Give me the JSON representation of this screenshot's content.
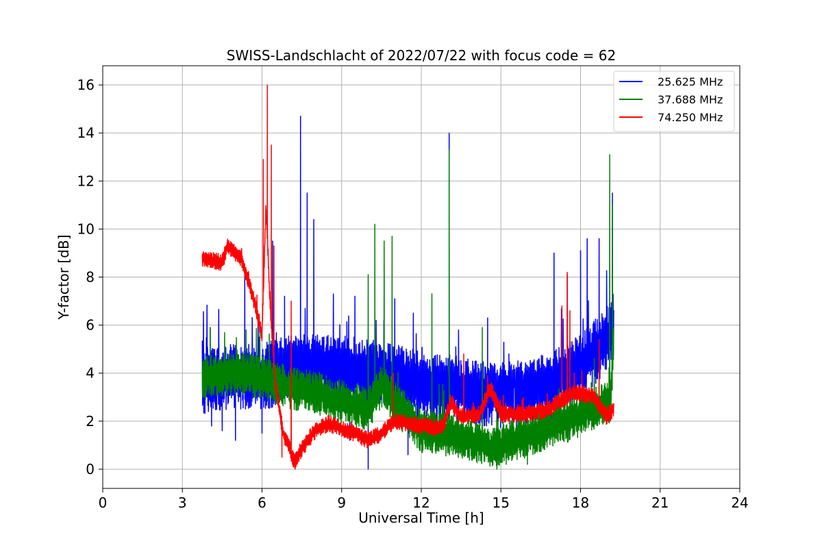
{
  "chart_data": {
    "type": "line",
    "title": "SWISS-Landschlacht of 2022/07/22 with focus code = 62",
    "xlabel": "Universal Time [h]",
    "ylabel": "Y-factor [dB]",
    "xlim": [
      0,
      24
    ],
    "ylim": [
      -0.8,
      16.8
    ],
    "xticks": [
      0,
      3,
      6,
      9,
      12,
      15,
      18,
      21,
      24
    ],
    "yticks": [
      0,
      2,
      4,
      6,
      8,
      10,
      12,
      14,
      16
    ],
    "grid": true,
    "legend_position": "top-right",
    "series": [
      {
        "name": "25.625 MHz",
        "color": "#0000ff",
        "base": [
          [
            3.75,
            3.7
          ],
          [
            4.5,
            3.8
          ],
          [
            5.5,
            3.8
          ],
          [
            6.2,
            3.9
          ],
          [
            7,
            4.2
          ],
          [
            8,
            4.2
          ],
          [
            9,
            4.2
          ],
          [
            10,
            4.0
          ],
          [
            11,
            3.8
          ],
          [
            12,
            3.5
          ],
          [
            13,
            3.4
          ],
          [
            14,
            3.2
          ],
          [
            15,
            3.1
          ],
          [
            16,
            3.2
          ],
          [
            17,
            3.6
          ],
          [
            18,
            4.2
          ],
          [
            19,
            5.5
          ],
          [
            19.25,
            6.0
          ]
        ],
        "noise": [
          1.4,
          1.4
        ],
        "spikes": [
          [
            4.05,
            5.9
          ],
          [
            5.35,
            8.2
          ],
          [
            5.9,
            5.5
          ],
          [
            6.4,
            9.5
          ],
          [
            6.85,
            7.2
          ],
          [
            7.45,
            14.7
          ],
          [
            7.7,
            11.5
          ],
          [
            7.95,
            10.4
          ],
          [
            9.5,
            7.2
          ],
          [
            10.6,
            8.5
          ],
          [
            11,
            7.1
          ],
          [
            11.7,
            6.5
          ],
          [
            13.05,
            14.0
          ],
          [
            14.5,
            6.3
          ],
          [
            15.3,
            4.8
          ],
          [
            17,
            9.0
          ],
          [
            17.5,
            8.1
          ],
          [
            18,
            9.1
          ],
          [
            18.25,
            9.6
          ],
          [
            18.7,
            9.6
          ],
          [
            19.2,
            11.5
          ],
          [
            13.3,
            5.1
          ],
          [
            10.3,
            6.2
          ]
        ],
        "dips": [
          [
            4.1,
            1.8
          ],
          [
            4.5,
            1.6
          ],
          [
            5.0,
            1.2
          ],
          [
            6.0,
            1.5
          ],
          [
            10.0,
            0.0
          ],
          [
            11.5,
            0.6
          ],
          [
            9.3,
            1.2
          ]
        ]
      },
      {
        "name": "37.688 MHz",
        "color": "#008000",
        "base": [
          [
            3.75,
            3.8
          ],
          [
            5,
            4.0
          ],
          [
            6,
            3.8
          ],
          [
            7,
            3.4
          ],
          [
            8,
            3.2
          ],
          [
            9,
            2.8
          ],
          [
            10,
            2.5
          ],
          [
            10.5,
            3.5
          ],
          [
            11,
            2.8
          ],
          [
            11.5,
            2.2
          ],
          [
            12,
            1.6
          ],
          [
            13,
            1.4
          ],
          [
            14,
            1.2
          ],
          [
            14.8,
            0.8
          ],
          [
            15.5,
            1.2
          ],
          [
            16.5,
            1.6
          ],
          [
            17.5,
            2.0
          ],
          [
            18.5,
            2.5
          ],
          [
            19.1,
            2.8
          ],
          [
            19.25,
            5.0
          ]
        ],
        "noise": [
          0.9,
          0.9
        ],
        "spikes": [
          [
            4.05,
            5.9
          ],
          [
            5.4,
            5.8
          ],
          [
            10.0,
            8.1
          ],
          [
            10.25,
            10.2
          ],
          [
            10.6,
            9.5
          ],
          [
            10.9,
            9.7
          ],
          [
            12.4,
            7.3
          ],
          [
            13.05,
            13.3
          ],
          [
            14.3,
            5.9
          ],
          [
            17.5,
            4.0
          ],
          [
            19.1,
            13.1
          ],
          [
            19.2,
            11.0
          ],
          [
            18.4,
            3.6
          ]
        ],
        "dips": [
          [
            14.85,
            0.0
          ],
          [
            15.2,
            0.2
          ],
          [
            16.0,
            0.2
          ]
        ]
      },
      {
        "name": "74.250 MHz",
        "color": "#ff0000",
        "base": [
          [
            3.75,
            8.8
          ],
          [
            4.5,
            8.6
          ],
          [
            4.7,
            9.3
          ],
          [
            5.2,
            8.8
          ],
          [
            5.5,
            7.8
          ],
          [
            5.8,
            6.6
          ],
          [
            6.0,
            5.6
          ],
          [
            6.15,
            11.0
          ],
          [
            6.3,
            7.0
          ],
          [
            6.5,
            3.5
          ],
          [
            6.8,
            1.5
          ],
          [
            7.0,
            1.0
          ],
          [
            7.2,
            0.3
          ],
          [
            7.6,
            1.0
          ],
          [
            8.0,
            1.6
          ],
          [
            8.5,
            1.9
          ],
          [
            9.0,
            1.7
          ],
          [
            9.5,
            1.5
          ],
          [
            10.0,
            1.2
          ],
          [
            10.5,
            1.5
          ],
          [
            11,
            2.0
          ],
          [
            12,
            1.8
          ],
          [
            12.8,
            1.7
          ],
          [
            13.1,
            2.8
          ],
          [
            13.5,
            2.2
          ],
          [
            14.2,
            2.3
          ],
          [
            14.6,
            3.4
          ],
          [
            15,
            2.3
          ],
          [
            16,
            2.3
          ],
          [
            16.8,
            2.5
          ],
          [
            17.2,
            2.8
          ],
          [
            17.8,
            3.2
          ],
          [
            18.5,
            3.0
          ],
          [
            19,
            2.2
          ],
          [
            19.25,
            2.5
          ]
        ],
        "noise": [
          0.35,
          0.35
        ],
        "spikes": [
          [
            6.05,
            12.9
          ],
          [
            6.2,
            16.0
          ],
          [
            6.35,
            13.5
          ],
          [
            6.45,
            9.3
          ],
          [
            7.1,
            7.0
          ],
          [
            10.95,
            4.0
          ],
          [
            13.6,
            4.8
          ],
          [
            14.5,
            3.9
          ],
          [
            17.3,
            6.8
          ],
          [
            17.5,
            8.2
          ],
          [
            17.6,
            6.6
          ],
          [
            18.05,
            4.1
          ],
          [
            18.7,
            5.4
          ]
        ],
        "dips": [
          [
            6.75,
            0.5
          ],
          [
            7.25,
            0.0
          ]
        ]
      }
    ]
  }
}
